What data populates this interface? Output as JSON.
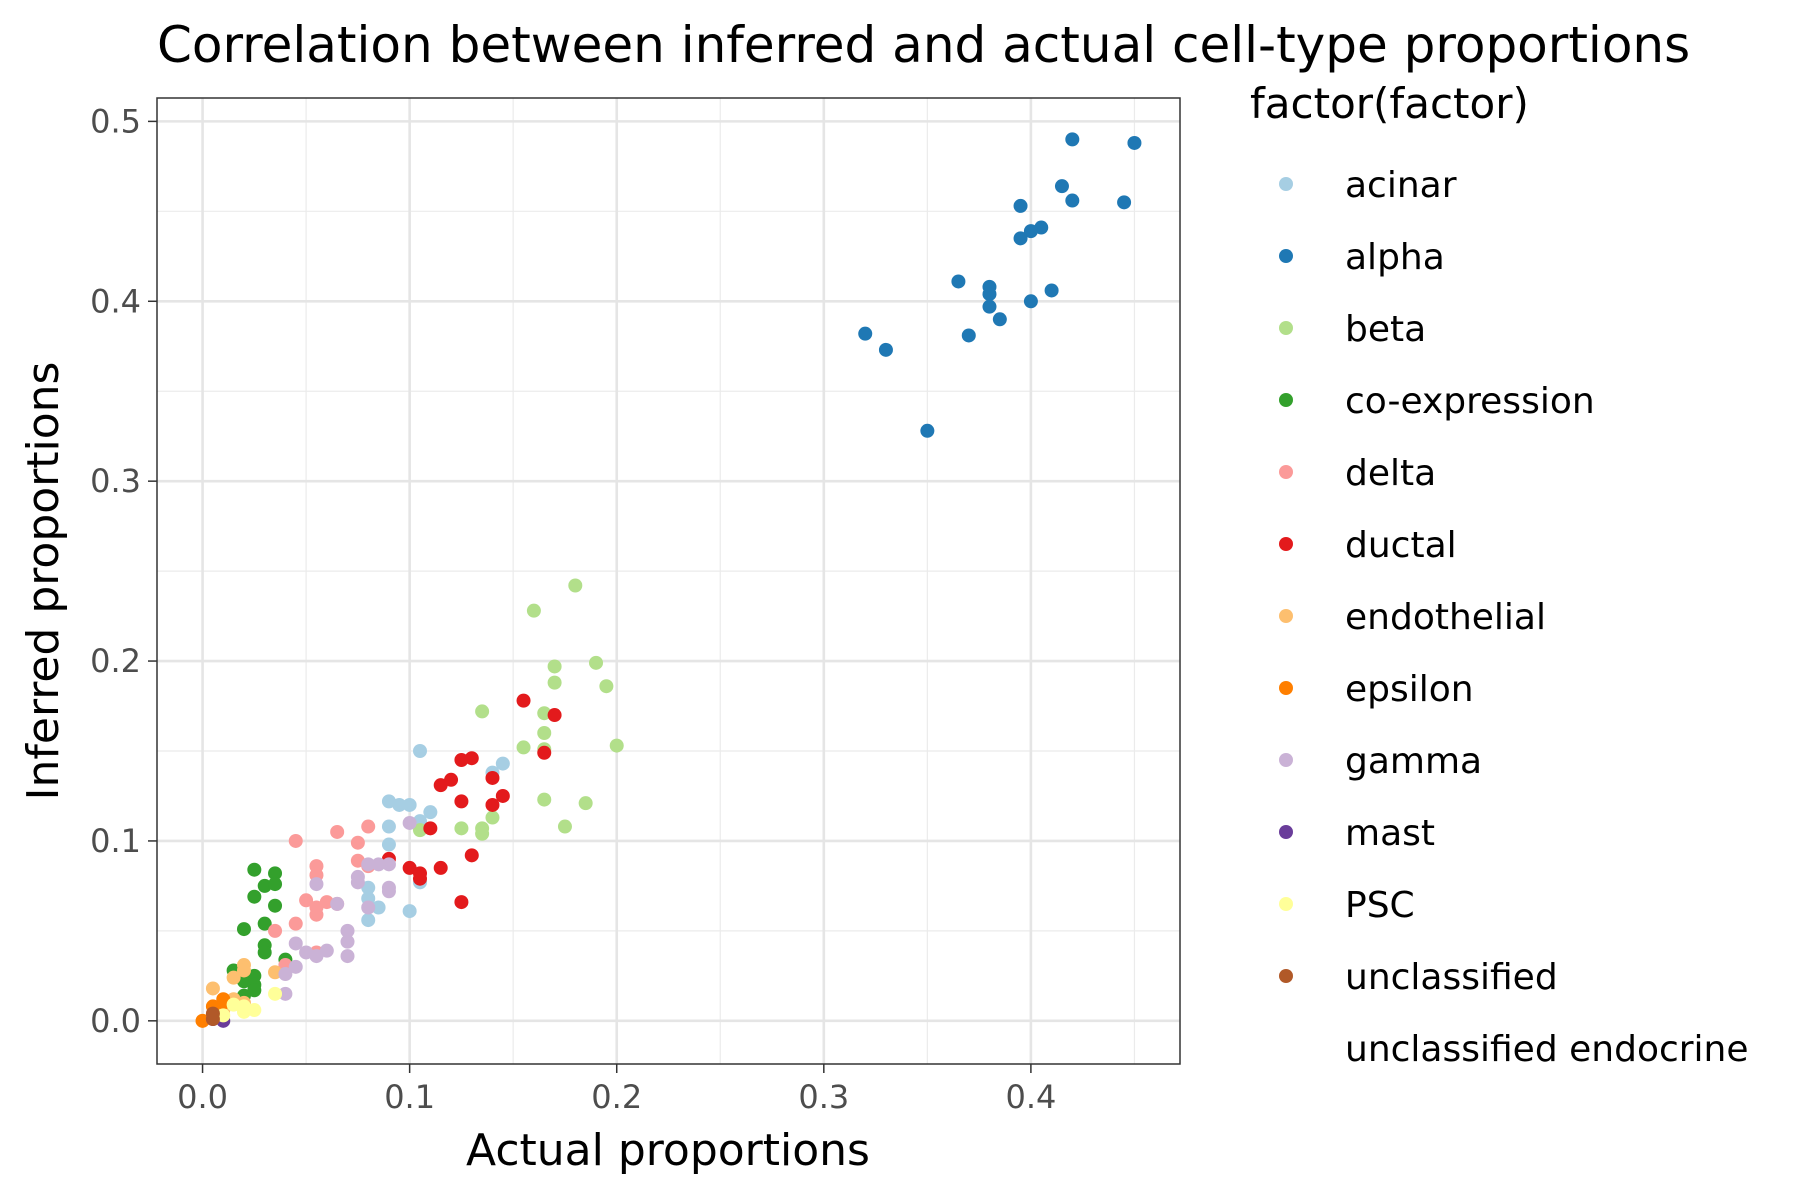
{
  "chart_data": {
    "type": "scatter",
    "title": "Correlation between inferred and actual cell-type proportions",
    "xlabel": "Actual proportions",
    "ylabel": "Inferred proportions",
    "xlim": [
      -0.022,
      0.472
    ],
    "ylim": [
      -0.024,
      0.513
    ],
    "xticks": [
      0.0,
      0.1,
      0.2,
      0.3,
      0.4
    ],
    "xtick_labels": [
      "0.0",
      "0.1",
      "0.2",
      "0.3",
      "0.4"
    ],
    "yticks": [
      0.0,
      0.1,
      0.2,
      0.3,
      0.4,
      0.5
    ],
    "ytick_labels": [
      "0.0",
      "0.1",
      "0.2",
      "0.3",
      "0.4",
      "0.5"
    ],
    "grid": true,
    "legend_title": "factor(factor)",
    "legend_position": "right",
    "series": [
      {
        "name": "acinar",
        "color": "#a6cee3",
        "points": [
          [
            0.09,
            0.122
          ],
          [
            0.095,
            0.12
          ],
          [
            0.1,
            0.12
          ],
          [
            0.105,
            0.15
          ],
          [
            0.11,
            0.116
          ],
          [
            0.09,
            0.108
          ],
          [
            0.09,
            0.098
          ],
          [
            0.08,
            0.074
          ],
          [
            0.08,
            0.068
          ],
          [
            0.085,
            0.063
          ],
          [
            0.08,
            0.056
          ],
          [
            0.1,
            0.061
          ],
          [
            0.105,
            0.077
          ],
          [
            0.14,
            0.138
          ],
          [
            0.145,
            0.143
          ],
          [
            0.105,
            0.111
          ]
        ]
      },
      {
        "name": "alpha",
        "color": "#1f78b4",
        "points": [
          [
            0.42,
            0.49
          ],
          [
            0.45,
            0.488
          ],
          [
            0.415,
            0.464
          ],
          [
            0.42,
            0.456
          ],
          [
            0.445,
            0.455
          ],
          [
            0.395,
            0.453
          ],
          [
            0.405,
            0.441
          ],
          [
            0.4,
            0.439
          ],
          [
            0.395,
            0.435
          ],
          [
            0.365,
            0.411
          ],
          [
            0.38,
            0.408
          ],
          [
            0.38,
            0.404
          ],
          [
            0.41,
            0.406
          ],
          [
            0.4,
            0.4
          ],
          [
            0.38,
            0.397
          ],
          [
            0.385,
            0.39
          ],
          [
            0.32,
            0.382
          ],
          [
            0.37,
            0.381
          ],
          [
            0.33,
            0.373
          ],
          [
            0.35,
            0.328
          ]
        ]
      },
      {
        "name": "beta",
        "color": "#b2df8a",
        "points": [
          [
            0.18,
            0.242
          ],
          [
            0.16,
            0.228
          ],
          [
            0.17,
            0.197
          ],
          [
            0.19,
            0.199
          ],
          [
            0.17,
            0.188
          ],
          [
            0.195,
            0.186
          ],
          [
            0.135,
            0.172
          ],
          [
            0.165,
            0.171
          ],
          [
            0.165,
            0.16
          ],
          [
            0.2,
            0.153
          ],
          [
            0.155,
            0.152
          ],
          [
            0.165,
            0.151
          ],
          [
            0.165,
            0.123
          ],
          [
            0.185,
            0.121
          ],
          [
            0.14,
            0.113
          ],
          [
            0.175,
            0.108
          ],
          [
            0.125,
            0.107
          ],
          [
            0.135,
            0.104
          ],
          [
            0.135,
            0.107
          ],
          [
            0.105,
            0.106
          ]
        ]
      },
      {
        "name": "co-expression",
        "color": "#33a02c",
        "points": [
          [
            0.025,
            0.084
          ],
          [
            0.035,
            0.082
          ],
          [
            0.03,
            0.075
          ],
          [
            0.035,
            0.076
          ],
          [
            0.025,
            0.069
          ],
          [
            0.035,
            0.064
          ],
          [
            0.03,
            0.054
          ],
          [
            0.02,
            0.051
          ],
          [
            0.03,
            0.042
          ],
          [
            0.03,
            0.038
          ],
          [
            0.04,
            0.034
          ],
          [
            0.015,
            0.028
          ],
          [
            0.025,
            0.025
          ],
          [
            0.02,
            0.022
          ],
          [
            0.025,
            0.02
          ],
          [
            0.025,
            0.017
          ],
          [
            0.02,
            0.014
          ]
        ]
      },
      {
        "name": "delta",
        "color": "#fb9a99",
        "points": [
          [
            0.045,
            0.1
          ],
          [
            0.065,
            0.105
          ],
          [
            0.08,
            0.108
          ],
          [
            0.075,
            0.099
          ],
          [
            0.075,
            0.089
          ],
          [
            0.055,
            0.086
          ],
          [
            0.08,
            0.086
          ],
          [
            0.055,
            0.081
          ],
          [
            0.05,
            0.067
          ],
          [
            0.06,
            0.066
          ],
          [
            0.065,
            0.065
          ],
          [
            0.055,
            0.063
          ],
          [
            0.055,
            0.059
          ],
          [
            0.045,
            0.054
          ],
          [
            0.035,
            0.05
          ],
          [
            0.055,
            0.038
          ],
          [
            0.04,
            0.031
          ]
        ]
      },
      {
        "name": "ductal",
        "color": "#e31a1c",
        "points": [
          [
            0.155,
            0.178
          ],
          [
            0.17,
            0.17
          ],
          [
            0.165,
            0.149
          ],
          [
            0.13,
            0.146
          ],
          [
            0.125,
            0.145
          ],
          [
            0.14,
            0.135
          ],
          [
            0.12,
            0.134
          ],
          [
            0.115,
            0.131
          ],
          [
            0.145,
            0.125
          ],
          [
            0.125,
            0.122
          ],
          [
            0.14,
            0.12
          ],
          [
            0.11,
            0.107
          ],
          [
            0.09,
            0.09
          ],
          [
            0.13,
            0.092
          ],
          [
            0.1,
            0.085
          ],
          [
            0.115,
            0.085
          ],
          [
            0.105,
            0.082
          ],
          [
            0.105,
            0.079
          ],
          [
            0.125,
            0.066
          ]
        ]
      },
      {
        "name": "endothelial",
        "color": "#fdbf6f",
        "points": [
          [
            0.02,
            0.031
          ],
          [
            0.015,
            0.024
          ],
          [
            0.035,
            0.027
          ],
          [
            0.005,
            0.018
          ],
          [
            0.02,
            0.01
          ],
          [
            0.01,
            0.006
          ],
          [
            0.015,
            0.012
          ],
          [
            0.02,
            0.028
          ],
          [
            0.0,
            0.0
          ],
          [
            0.005,
            0.003
          ]
        ]
      },
      {
        "name": "epsilon",
        "color": "#ff7f00",
        "points": [
          [
            0.01,
            0.012
          ],
          [
            0.005,
            0.008
          ],
          [
            0.01,
            0.01
          ],
          [
            0.0,
            0.0
          ]
        ]
      },
      {
        "name": "gamma",
        "color": "#cab2d6",
        "points": [
          [
            0.1,
            0.11
          ],
          [
            0.09,
            0.087
          ],
          [
            0.085,
            0.087
          ],
          [
            0.08,
            0.087
          ],
          [
            0.075,
            0.08
          ],
          [
            0.075,
            0.077
          ],
          [
            0.055,
            0.076
          ],
          [
            0.09,
            0.074
          ],
          [
            0.09,
            0.072
          ],
          [
            0.065,
            0.065
          ],
          [
            0.08,
            0.063
          ],
          [
            0.07,
            0.05
          ],
          [
            0.07,
            0.044
          ],
          [
            0.045,
            0.043
          ],
          [
            0.06,
            0.039
          ],
          [
            0.05,
            0.038
          ],
          [
            0.055,
            0.036
          ],
          [
            0.07,
            0.036
          ],
          [
            0.045,
            0.03
          ],
          [
            0.04,
            0.026
          ],
          [
            0.04,
            0.015
          ]
        ]
      },
      {
        "name": "mast",
        "color": "#6a3d9a",
        "points": [
          [
            0.01,
            0.0
          ],
          [
            0.005,
            0.001
          ]
        ]
      },
      {
        "name": "PSC",
        "color": "#ffff99",
        "points": [
          [
            0.02,
            0.005
          ],
          [
            0.025,
            0.006
          ],
          [
            0.015,
            0.009
          ],
          [
            0.01,
            0.003
          ],
          [
            0.035,
            0.015
          ],
          [
            0.02,
            0.008
          ]
        ]
      },
      {
        "name": "unclassified",
        "color": "#b15928",
        "points": [
          [
            0.005,
            0.001
          ],
          [
            0.005,
            0.004
          ]
        ]
      },
      {
        "name": "unclassified endocrine",
        "color": "#ffffff",
        "points": []
      }
    ]
  }
}
